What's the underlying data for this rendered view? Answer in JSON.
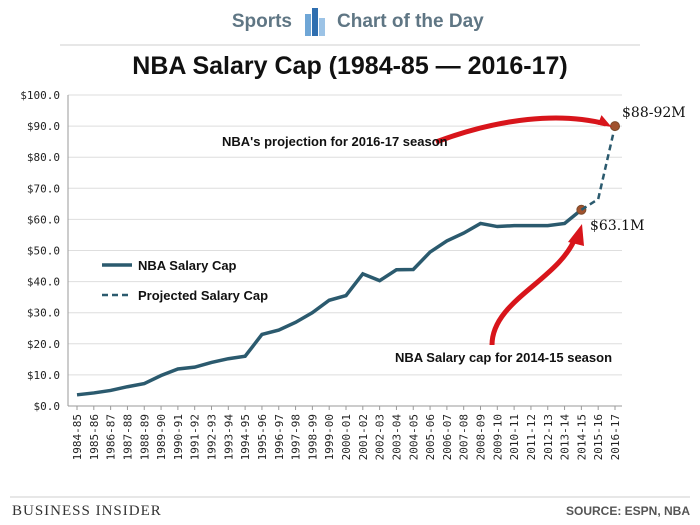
{
  "header": {
    "section": "Sports",
    "label": "Chart of the Day"
  },
  "chart_data": {
    "type": "line",
    "title": "NBA Salary Cap (1984-85 — 2016-17)",
    "categories": [
      "1984-85",
      "1985-86",
      "1986-87",
      "1987-88",
      "1988-89",
      "1989-90",
      "1990-91",
      "1991-92",
      "1992-93",
      "1993-94",
      "1994-95",
      "1995-96",
      "1996-97",
      "1997-98",
      "1998-99",
      "1999-00",
      "2000-01",
      "2001-02",
      "2002-03",
      "2003-04",
      "2004-05",
      "2005-06",
      "2006-07",
      "2007-08",
      "2008-09",
      "2009-10",
      "2010-11",
      "2011-12",
      "2012-13",
      "2013-14",
      "2014-15",
      "2015-16",
      "2016-17"
    ],
    "series": [
      {
        "name": "NBA Salary Cap",
        "color": "#2b5a6e",
        "dash": false,
        "end_marker_color": "#a0522d",
        "values": [
          3.6,
          4.2,
          5.0,
          6.2,
          7.2,
          9.8,
          11.9,
          12.5,
          14.0,
          15.2,
          16.0,
          23.0,
          24.4,
          26.9,
          30.0,
          34.0,
          35.5,
          42.5,
          40.3,
          43.8,
          43.9,
          49.5,
          53.1,
          55.6,
          58.7,
          57.7,
          58.0,
          58.0,
          58.0,
          58.7,
          63.1,
          null,
          null
        ]
      },
      {
        "name": "Projected Salary Cap",
        "color": "#2b5a6e",
        "dash": true,
        "end_marker_color": "#a0522d",
        "values": [
          null,
          null,
          null,
          null,
          null,
          null,
          null,
          null,
          null,
          null,
          null,
          null,
          null,
          null,
          null,
          null,
          null,
          null,
          null,
          null,
          null,
          null,
          null,
          null,
          null,
          null,
          null,
          null,
          null,
          null,
          63.1,
          66.5,
          90.0
        ]
      }
    ],
    "ylim": [
      0,
      100
    ],
    "yticks": [
      {
        "value": 0,
        "label": "$0.0"
      },
      {
        "value": 10,
        "label": "$10.0"
      },
      {
        "value": 20,
        "label": "$20.0"
      },
      {
        "value": 30,
        "label": "$30.0"
      },
      {
        "value": 40,
        "label": "$40.0"
      },
      {
        "value": 50,
        "label": "$50.0"
      },
      {
        "value": 60,
        "label": "$60.0"
      },
      {
        "value": 70,
        "label": "$70.0"
      },
      {
        "value": 80,
        "label": "$80.0"
      },
      {
        "value": 90,
        "label": "$90.0"
      },
      {
        "value": 100,
        "label": "$100.0"
      }
    ],
    "grid": true,
    "legend_position": "left",
    "annotations": [
      "$88-92M",
      "$63.1M",
      "NBA's projection for 2016-17 season",
      "NBA Salary cap for 2014-15 season"
    ]
  },
  "footer": {
    "brand": "Business Insider",
    "source": "SOURCE: ESPN, NBA"
  }
}
